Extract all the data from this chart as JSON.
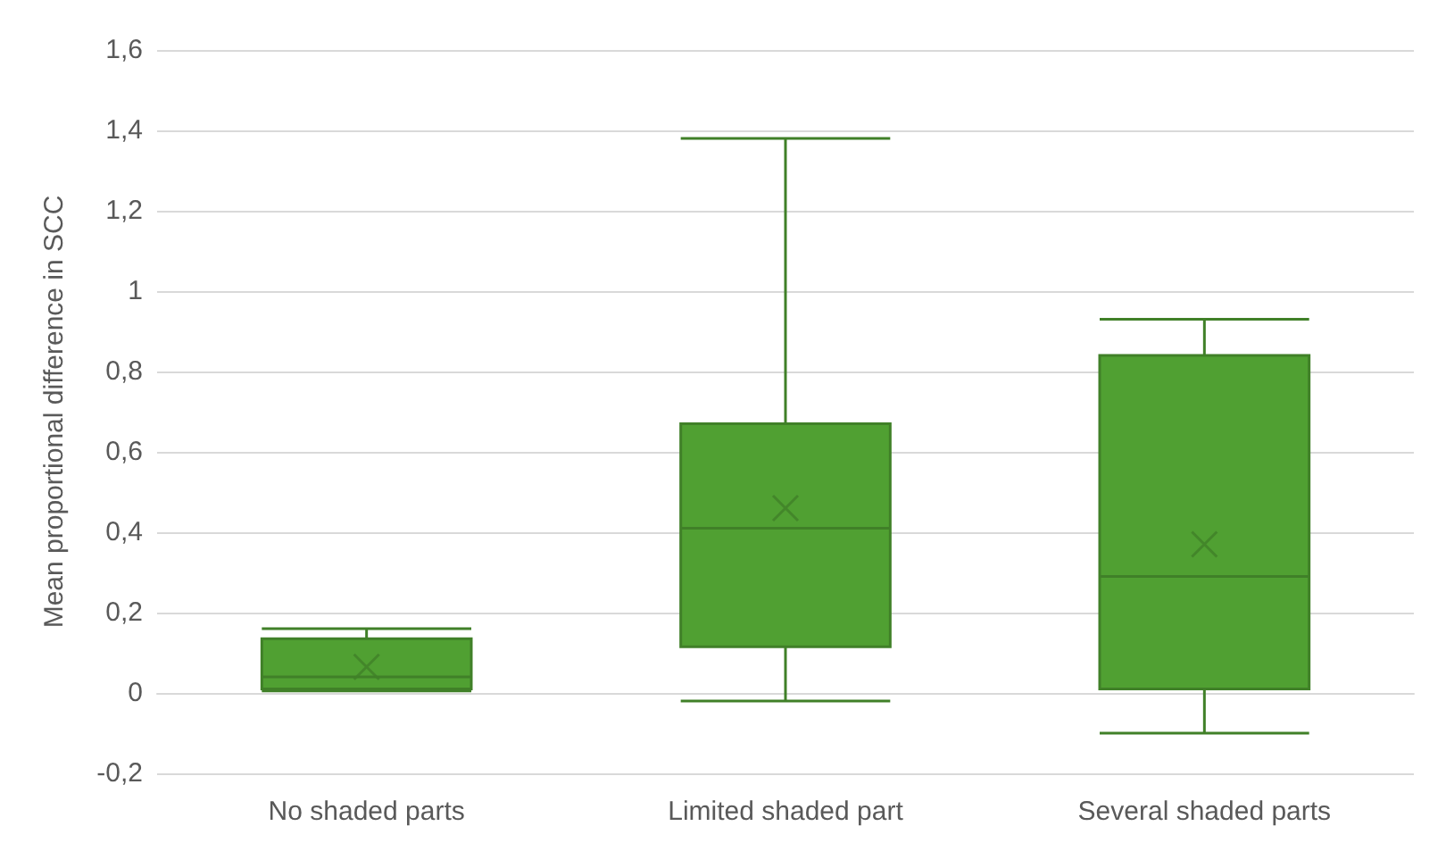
{
  "chart_data": {
    "type": "box",
    "ylabel": "Mean proportional difference in SCC",
    "categories": [
      "No shaded parts",
      "Limited shaded part",
      "Several shaded parts"
    ],
    "color": "#50a032",
    "boxes": [
      {
        "low": 0.005,
        "q1": 0.01,
        "median": 0.04,
        "q3": 0.135,
        "high": 0.16,
        "mean": 0.065
      },
      {
        "low": -0.02,
        "q1": 0.115,
        "median": 0.41,
        "q3": 0.67,
        "high": 1.38,
        "mean": 0.46
      },
      {
        "low": -0.1,
        "q1": 0.01,
        "median": 0.29,
        "q3": 0.84,
        "high": 0.93,
        "mean": 0.37
      }
    ],
    "ylim": [
      -0.2,
      1.6
    ],
    "yticks": [
      {
        "value": -0.2,
        "label": "-0,2"
      },
      0,
      {
        "value": 0.2,
        "label": "0,2"
      },
      {
        "value": 0.4,
        "label": "0,4"
      },
      {
        "value": 0.6,
        "label": "0,6"
      },
      {
        "value": 0.8,
        "label": "0,8"
      },
      1,
      {
        "value": 1.2,
        "label": "1,2"
      },
      {
        "value": 1.4,
        "label": "1,4"
      },
      {
        "value": 1.6,
        "label": "1,6"
      }
    ],
    "grid": "y"
  }
}
